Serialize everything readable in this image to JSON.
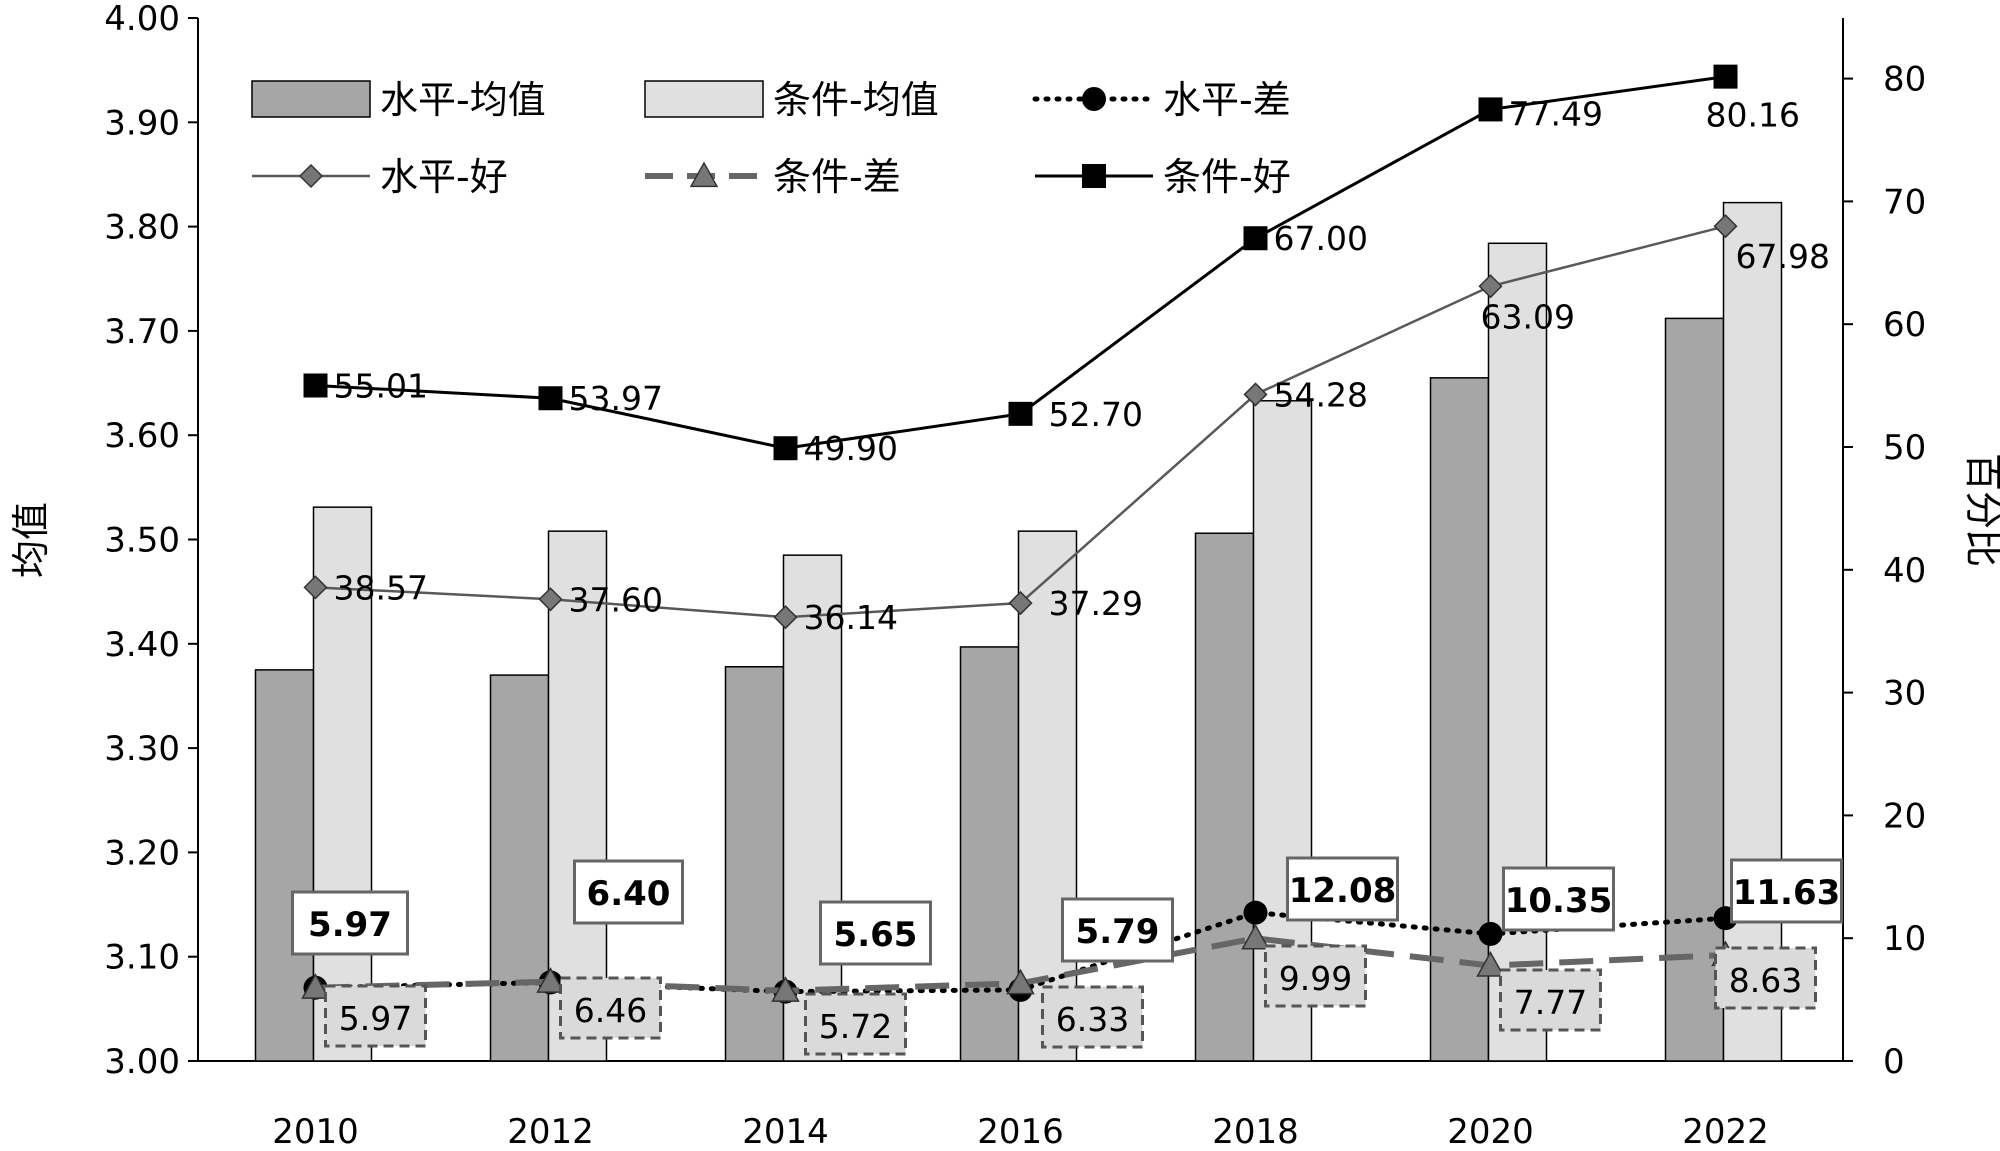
{
  "chart_data": {
    "type": "bar",
    "title": "",
    "categories": [
      "2010",
      "2012",
      "2014",
      "2016",
      "2018",
      "2020",
      "2022"
    ],
    "left_axis": {
      "label": "均值",
      "ylim": [
        3.0,
        4.0
      ],
      "ticks": [
        "3.00",
        "3.10",
        "3.20",
        "3.30",
        "3.40",
        "3.50",
        "3.60",
        "3.70",
        "3.80",
        "3.90",
        "4.00"
      ]
    },
    "right_axis": {
      "label": "百分比",
      "ylim": [
        0,
        85
      ],
      "ticks": [
        "0",
        "10",
        "20",
        "30",
        "40",
        "50",
        "60",
        "70",
        "80"
      ]
    },
    "bar_series": [
      {
        "name": "水平-均值",
        "axis": "left",
        "color": "#a6a6a6",
        "values": [
          3.375,
          3.37,
          3.378,
          3.397,
          3.506,
          3.655,
          3.712
        ]
      },
      {
        "name": "条件-均值",
        "axis": "left",
        "color": "#e0e0e0",
        "values": [
          3.531,
          3.508,
          3.485,
          3.508,
          3.633,
          3.784,
          3.823
        ]
      }
    ],
    "line_series": [
      {
        "name": "水平-差",
        "axis": "right",
        "style": "dotted",
        "marker": "circle",
        "color": "#000000",
        "values": [
          5.97,
          6.4,
          5.65,
          5.79,
          12.08,
          10.35,
          11.63
        ],
        "labels": [
          "5.97",
          "6.40",
          "5.65",
          "5.79",
          "12.08",
          "10.35",
          "11.63"
        ]
      },
      {
        "name": "水平-好",
        "axis": "right",
        "style": "solid",
        "marker": "diamond",
        "color": "#595959",
        "values": [
          38.57,
          37.6,
          36.14,
          37.29,
          54.28,
          63.09,
          67.98
        ],
        "labels": [
          "38.57",
          "37.60",
          "36.14",
          "37.29",
          "54.28",
          "63.09",
          "67.98"
        ]
      },
      {
        "name": "条件-差",
        "axis": "right",
        "style": "dashed",
        "marker": "triangle",
        "color": "#666666",
        "values": [
          5.97,
          6.46,
          5.72,
          6.33,
          9.99,
          7.77,
          8.63
        ],
        "labels": [
          "5.97",
          "6.46",
          "5.72",
          "6.33",
          "9.99",
          "7.77",
          "8.63"
        ]
      },
      {
        "name": "条件-好",
        "axis": "right",
        "style": "solid",
        "marker": "square",
        "color": "#000000",
        "values": [
          55.01,
          53.97,
          49.9,
          52.7,
          67.0,
          77.49,
          80.16
        ],
        "labels": [
          "55.01",
          "53.97",
          "49.90",
          "52.70",
          "67.00",
          "77.49",
          "80.16"
        ]
      }
    ],
    "legend": {
      "placement": "top-left",
      "entries": [
        "水平-均值",
        "条件-均值",
        "水平-差",
        "水平-好",
        "条件-差",
        "条件-好"
      ]
    }
  }
}
